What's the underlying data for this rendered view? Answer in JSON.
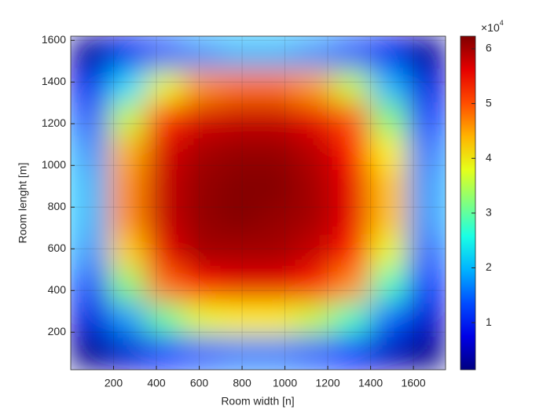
{
  "chart_data": {
    "type": "heatmap",
    "xlabel": "Room width [n]",
    "ylabel": "Room lenght [m]",
    "x": [
      87.5,
      262.5,
      437.5,
      612.5,
      787.5,
      962.5,
      1137.5,
      1312.5,
      1487.5,
      1662.5
    ],
    "y": [
      1540,
      1380,
      1220,
      1060,
      900,
      740,
      580,
      420,
      260,
      100
    ],
    "z": [
      [
        3000,
        8000,
        14000,
        18000,
        20000,
        20000,
        18000,
        14000,
        8000,
        3000
      ],
      [
        8000,
        22000,
        38000,
        46000,
        48000,
        48000,
        45000,
        36000,
        20000,
        7000
      ],
      [
        14000,
        36000,
        52000,
        57000,
        58000,
        58000,
        56000,
        50000,
        32000,
        12000
      ],
      [
        18000,
        44000,
        57000,
        60000,
        61000,
        61000,
        59000,
        54000,
        40000,
        16000
      ],
      [
        20000,
        46000,
        58000,
        61000,
        62000,
        62000,
        60000,
        56000,
        43000,
        18000
      ],
      [
        20000,
        46000,
        58000,
        61000,
        62000,
        61000,
        60000,
        56000,
        43000,
        18000
      ],
      [
        18000,
        42000,
        56000,
        60000,
        60000,
        60000,
        58000,
        53000,
        38000,
        15000
      ],
      [
        13000,
        32000,
        48000,
        54000,
        56000,
        56000,
        53000,
        46000,
        28000,
        11000
      ],
      [
        7000,
        18000,
        30000,
        38000,
        40000,
        40000,
        36000,
        28000,
        15000,
        6000
      ],
      [
        2000,
        6000,
        11000,
        14000,
        16000,
        16000,
        14000,
        10000,
        5000,
        2000
      ]
    ],
    "xlim": [
      0,
      1750
    ],
    "ylim": [
      20,
      1620
    ],
    "xticks": [
      200,
      400,
      600,
      800,
      1000,
      1200,
      1400,
      1600
    ],
    "yticks": [
      200,
      400,
      600,
      800,
      1000,
      1200,
      1400,
      1600
    ],
    "grid": true,
    "colormap": "jet",
    "clim": [
      1400,
      62300
    ],
    "cticks": [
      {
        "value": 10000,
        "label": "1"
      },
      {
        "value": 20000,
        "label": "2"
      },
      {
        "value": 30000,
        "label": "3"
      },
      {
        "value": 40000,
        "label": "4"
      },
      {
        "value": 50000,
        "label": "5"
      },
      {
        "value": 60000,
        "label": "6"
      }
    ],
    "cexponent_base": "×10",
    "cexponent": "4"
  }
}
